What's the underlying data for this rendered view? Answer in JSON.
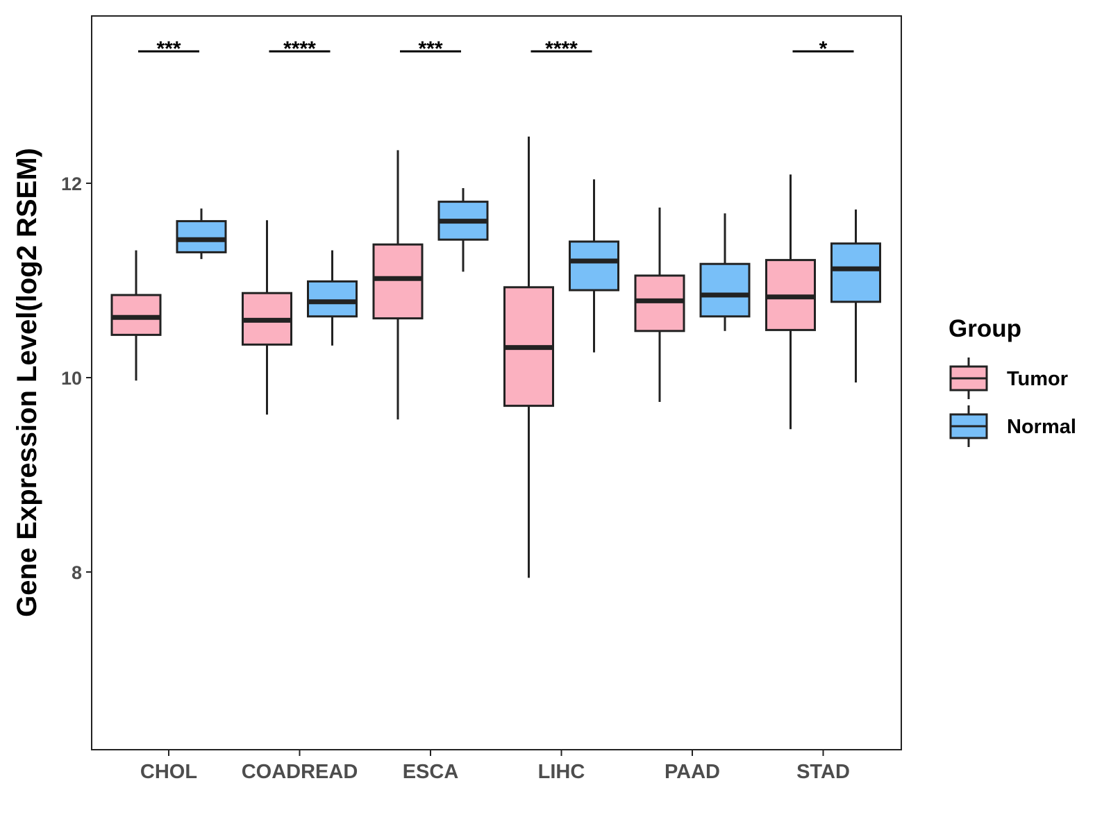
{
  "chart_data": {
    "type": "boxplot",
    "title": "",
    "xlabel": "",
    "ylabel": "Gene Expression Level(log2 RSEM)",
    "ylim": [
      6.25,
      13.8
    ],
    "yticks": [
      8,
      10,
      12
    ],
    "grid": false,
    "categories": [
      "CHOL",
      "COADREAD",
      "ESCA",
      "LIHC",
      "PAAD",
      "STAD"
    ],
    "legend": {
      "title": "Group",
      "position": "right",
      "entries": [
        "Tumor",
        "Normal"
      ]
    },
    "colors": {
      "Tumor": "#fbb1c0",
      "Normal": "#78bff8",
      "stroke": "#222222"
    },
    "series": [
      {
        "name": "Tumor",
        "boxes": [
          {
            "category": "CHOL",
            "min": 9.97,
            "q1": 10.44,
            "median": 10.62,
            "q3": 10.85,
            "max": 11.31
          },
          {
            "category": "COADREAD",
            "min": 9.62,
            "q1": 10.34,
            "median": 10.59,
            "q3": 10.87,
            "max": 11.62
          },
          {
            "category": "ESCA",
            "min": 9.57,
            "q1": 10.61,
            "median": 11.02,
            "q3": 11.37,
            "max": 12.34
          },
          {
            "category": "LIHC",
            "min": 7.94,
            "q1": 9.71,
            "median": 10.31,
            "q3": 10.93,
            "max": 12.48
          },
          {
            "category": "PAAD",
            "min": 9.75,
            "q1": 10.48,
            "median": 10.79,
            "q3": 11.05,
            "max": 11.75
          },
          {
            "category": "STAD",
            "min": 9.47,
            "q1": 10.49,
            "median": 10.83,
            "q3": 11.21,
            "max": 12.09
          }
        ]
      },
      {
        "name": "Normal",
        "boxes": [
          {
            "category": "CHOL",
            "min": 11.22,
            "q1": 11.29,
            "median": 11.42,
            "q3": 11.61,
            "max": 11.74
          },
          {
            "category": "COADREAD",
            "min": 10.33,
            "q1": 10.63,
            "median": 10.78,
            "q3": 10.99,
            "max": 11.31
          },
          {
            "category": "ESCA",
            "min": 11.09,
            "q1": 11.42,
            "median": 11.61,
            "q3": 11.81,
            "max": 11.95
          },
          {
            "category": "LIHC",
            "min": 10.26,
            "q1": 10.9,
            "median": 11.2,
            "q3": 11.4,
            "max": 12.04
          },
          {
            "category": "PAAD",
            "min": 10.48,
            "q1": 10.63,
            "median": 10.85,
            "q3": 11.17,
            "max": 11.69
          },
          {
            "category": "STAD",
            "min": 9.95,
            "q1": 10.78,
            "median": 11.12,
            "q3": 11.38,
            "max": 11.73
          }
        ]
      }
    ],
    "significance": [
      {
        "category": "CHOL",
        "label": "***"
      },
      {
        "category": "COADREAD",
        "label": "****"
      },
      {
        "category": "ESCA",
        "label": "***"
      },
      {
        "category": "LIHC",
        "label": "****"
      },
      {
        "category": "STAD",
        "label": "*"
      }
    ]
  }
}
